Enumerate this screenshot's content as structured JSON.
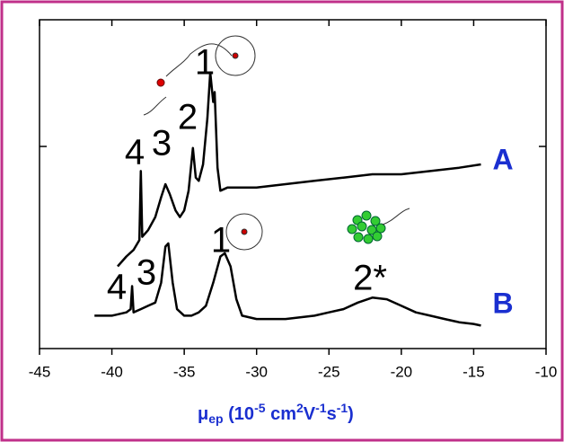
{
  "chart_data": {
    "type": "line",
    "xlabel_parts": [
      "μ",
      "ep",
      " (10",
      "-5",
      " cm",
      "2",
      "V",
      "-1",
      "s",
      "-1",
      ")"
    ],
    "xlim": [
      -45,
      -10
    ],
    "xticks": [
      -45,
      -40,
      -35,
      -30,
      -25,
      -20,
      -15,
      -10
    ],
    "ylim": [
      0,
      100
    ],
    "series": [
      {
        "name": "A",
        "color": "#000000",
        "x": [
          -39.6,
          -39,
          -38.5,
          -38.1,
          -38.0,
          -37.9,
          -37.5,
          -37,
          -36.6,
          -36.3,
          -36,
          -35.6,
          -35.3,
          -35,
          -34.7,
          -34.4,
          -34.2,
          -34,
          -33.7,
          -33.4,
          -33.2,
          -33.0,
          -32.9,
          -32.7,
          -32.5,
          -32,
          -30,
          -28,
          -26,
          -24,
          -22,
          -20,
          -18,
          -16,
          -14.5
        ],
        "values": [
          25,
          28,
          30,
          33,
          54,
          34,
          36,
          40,
          46,
          50,
          47,
          42,
          40,
          42,
          48,
          61,
          52,
          51,
          56,
          70,
          84,
          75,
          78,
          55,
          48,
          49,
          49,
          50,
          51,
          52,
          53,
          53,
          54,
          55,
          56
        ]
      },
      {
        "name": "B",
        "color": "#000000",
        "x": [
          -41.2,
          -40,
          -39,
          -38.7,
          -38.6,
          -38.5,
          -38,
          -37.5,
          -37,
          -36.6,
          -36.3,
          -36.1,
          -35.8,
          -35.5,
          -35,
          -34.5,
          -34,
          -33.5,
          -33,
          -32.5,
          -32.2,
          -31.8,
          -31.4,
          -31,
          -30,
          -28,
          -26,
          -25,
          -24,
          -23,
          -22,
          -21,
          -20,
          -19,
          -18,
          -17,
          -16,
          -15,
          -14.5
        ],
        "values": [
          10,
          10,
          11,
          12,
          19,
          11,
          12,
          13,
          14,
          20,
          31,
          32,
          20,
          12,
          10,
          10,
          11,
          13,
          20,
          28,
          29,
          25,
          15,
          10,
          9,
          9,
          10,
          11,
          12,
          14,
          15.5,
          15,
          13,
          11,
          10,
          9,
          8,
          7.5,
          7
        ]
      }
    ],
    "annotations": [
      "4",
      "3",
      "2",
      "1",
      "4",
      "3",
      "1",
      "2*"
    ]
  }
}
